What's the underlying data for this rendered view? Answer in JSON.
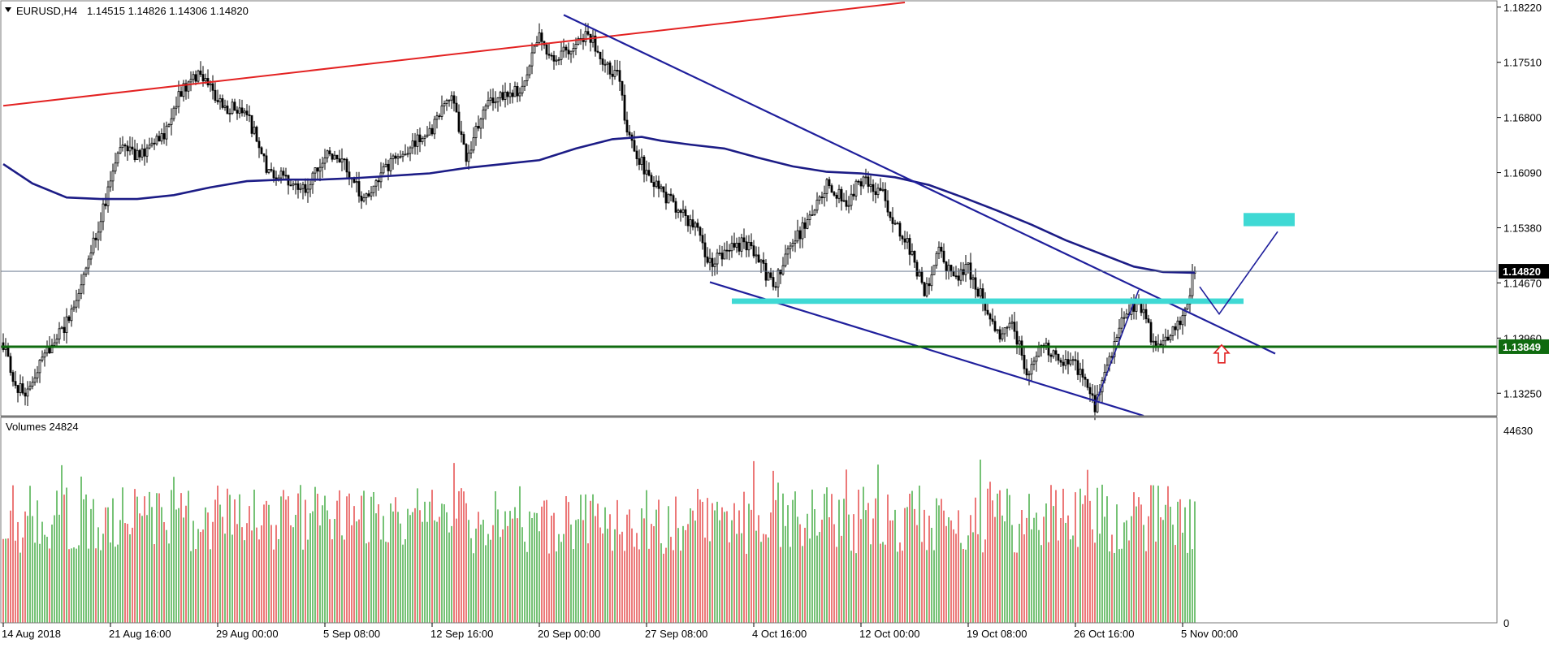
{
  "header": {
    "symbol": "EURUSD,H4",
    "ohlc": "1.14515 1.14826 1.14306 1.14820"
  },
  "volume_header": "Volumes 24824",
  "colors": {
    "bull": "#1a9a1a",
    "bear": "#e02020",
    "candle": "#000000",
    "ma": "#1c1c86",
    "channel": "#1f1f9c",
    "red_trend": "#e32222",
    "support": "#0f6b0f",
    "zone": "#3fd9d4",
    "current_price_bg": "#000000",
    "support_price_bg": "#0f6b0f",
    "arrow": "#e02020",
    "grid_line": "#5b6b86"
  },
  "chart_data": {
    "type": "candlestick",
    "title": "EURUSD,H4",
    "price_ylim": [
      1.1296,
      1.1827
    ],
    "price_ticks": [
      "1.18220",
      "1.17510",
      "1.16800",
      "1.16090",
      "1.15380",
      "1.14670",
      "1.13960",
      "1.13250"
    ],
    "volume_ylim": [
      0,
      44630
    ],
    "volume_ticks": [
      "44630",
      "0"
    ],
    "x_tick_labels": [
      "14 Aug 2018",
      "21 Aug 16:00",
      "29 Aug 00:00",
      "5 Sep 08:00",
      "12 Sep 16:00",
      "20 Sep 00:00",
      "27 Sep 08:00",
      "4 Oct 16:00",
      "12 Oct 00:00",
      "19 Oct 08:00",
      "26 Oct 16:00",
      "5 Nov 00:00"
    ],
    "x_ticks_bar": [
      0,
      44,
      88,
      132,
      176,
      220,
      264,
      308,
      352,
      396,
      440,
      484
    ],
    "bar_count": 490,
    "current_price": "1.14820",
    "support_price": "1.13849",
    "price_path": [
      [
        0,
        1.139
      ],
      [
        5,
        1.1335
      ],
      [
        10,
        1.1325
      ],
      [
        18,
        1.138
      ],
      [
        28,
        1.1425
      ],
      [
        38,
        1.153
      ],
      [
        48,
        1.164
      ],
      [
        58,
        1.163
      ],
      [
        66,
        1.166
      ],
      [
        72,
        1.171
      ],
      [
        80,
        1.1735
      ],
      [
        90,
        1.1695
      ],
      [
        100,
        1.1685
      ],
      [
        108,
        1.1615
      ],
      [
        116,
        1.16
      ],
      [
        124,
        1.1585
      ],
      [
        132,
        1.1635
      ],
      [
        140,
        1.1625
      ],
      [
        148,
        1.157
      ],
      [
        156,
        1.161
      ],
      [
        166,
        1.164
      ],
      [
        176,
        1.1665
      ],
      [
        184,
        1.1715
      ],
      [
        190,
        1.1625
      ],
      [
        198,
        1.17
      ],
      [
        204,
        1.1705
      ],
      [
        212,
        1.1715
      ],
      [
        220,
        1.179
      ],
      [
        226,
        1.1745
      ],
      [
        232,
        1.177
      ],
      [
        240,
        1.179
      ],
      [
        246,
        1.175
      ],
      [
        252,
        1.1735
      ],
      [
        256,
        1.1665
      ],
      [
        262,
        1.162
      ],
      [
        268,
        1.159
      ],
      [
        276,
        1.1565
      ],
      [
        284,
        1.154
      ],
      [
        290,
        1.149
      ],
      [
        296,
        1.1505
      ],
      [
        304,
        1.152
      ],
      [
        310,
        1.1495
      ],
      [
        316,
        1.146
      ],
      [
        322,
        1.151
      ],
      [
        330,
        1.1545
      ],
      [
        338,
        1.1595
      ],
      [
        346,
        1.157
      ],
      [
        352,
        1.16
      ],
      [
        360,
        1.1585
      ],
      [
        366,
        1.1545
      ],
      [
        372,
        1.151
      ],
      [
        378,
        1.1455
      ],
      [
        384,
        1.1505
      ],
      [
        390,
        1.147
      ],
      [
        396,
        1.1485
      ],
      [
        402,
        1.1445
      ],
      [
        408,
        1.14
      ],
      [
        414,
        1.142
      ],
      [
        420,
        1.135
      ],
      [
        426,
        1.1385
      ],
      [
        432,
        1.1375
      ],
      [
        440,
        1.136
      ],
      [
        448,
        1.131
      ],
      [
        454,
        1.1365
      ],
      [
        460,
        1.1425
      ],
      [
        466,
        1.1445
      ],
      [
        472,
        1.139
      ],
      [
        478,
        1.14
      ],
      [
        484,
        1.1425
      ],
      [
        489,
        1.1482
      ]
    ],
    "moving_average": [
      [
        0,
        1.162
      ],
      [
        12,
        1.1595
      ],
      [
        26,
        1.1577
      ],
      [
        40,
        1.1575
      ],
      [
        55,
        1.1575
      ],
      [
        70,
        1.158
      ],
      [
        85,
        1.159
      ],
      [
        100,
        1.1598
      ],
      [
        115,
        1.16
      ],
      [
        130,
        1.16
      ],
      [
        145,
        1.1602
      ],
      [
        160,
        1.1605
      ],
      [
        175,
        1.1608
      ],
      [
        190,
        1.1615
      ],
      [
        205,
        1.162
      ],
      [
        220,
        1.1625
      ],
      [
        235,
        1.164
      ],
      [
        250,
        1.1652
      ],
      [
        262,
        1.1655
      ],
      [
        270,
        1.165
      ],
      [
        282,
        1.1645
      ],
      [
        296,
        1.164
      ],
      [
        310,
        1.1628
      ],
      [
        324,
        1.1617
      ],
      [
        338,
        1.161
      ],
      [
        352,
        1.1608
      ],
      [
        366,
        1.1603
      ],
      [
        380,
        1.1593
      ],
      [
        394,
        1.1577
      ],
      [
        408,
        1.156
      ],
      [
        422,
        1.1542
      ],
      [
        436,
        1.1522
      ],
      [
        450,
        1.1505
      ],
      [
        464,
        1.1488
      ],
      [
        476,
        1.1481
      ],
      [
        489,
        1.148
      ]
    ],
    "red_trendline": [
      [
        0,
        1.1695
      ],
      [
        370,
        1.1828
      ]
    ],
    "channel_upper": [
      [
        230,
        1.1812
      ],
      [
        522,
        1.1376
      ]
    ],
    "channel_lower": [
      [
        290,
        1.1468
      ],
      [
        468,
        1.1296
      ]
    ],
    "rally_line": [
      [
        448,
        1.131
      ],
      [
        466,
        1.1458
      ]
    ],
    "projection": [
      [
        491,
        1.1462
      ],
      [
        499,
        1.1427
      ],
      [
        523,
        1.1533
      ]
    ],
    "zones": [
      {
        "x": [
          299,
          509
        ],
        "y": [
          1.144,
          1.1447
        ]
      },
      {
        "x": [
          509,
          530
        ],
        "y": [
          1.154,
          1.1557
        ]
      }
    ],
    "arrow_at": [
      500,
      1.1385
    ]
  }
}
